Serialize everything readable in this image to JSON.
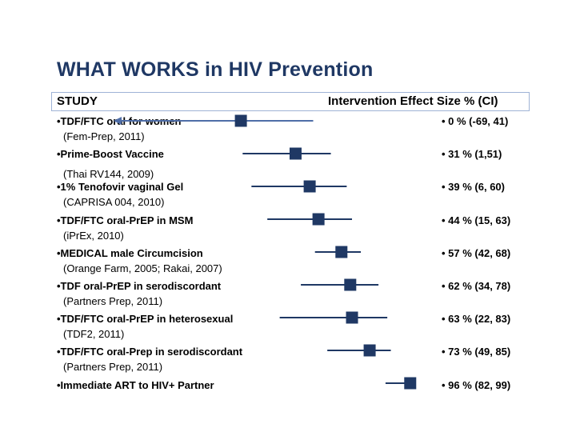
{
  "slide": {
    "title": "WHAT WORKS in HIV Prevention"
  },
  "header": {
    "study_label": "STUDY",
    "effect_label": "Intervention Effect Size % (CI)"
  },
  "chart_data": {
    "type": "forest",
    "title": "WHAT WORKS in HIV Prevention",
    "xlabel": "Intervention Effect Size % (CI)",
    "ylabel": "STUDY",
    "rows": [
      {
        "bullet": "•TDF/FTC oral for women",
        "reference": "(Fem-Prep, 2011)",
        "effect_label": "•    0 % (-69, 41)",
        "estimate": 0,
        "ci_low": -69,
        "ci_high": 41,
        "low_arrow": true
      },
      {
        "bullet": "•Prime-Boost Vaccine",
        "reference": "(Thai RV144, 2009)",
        "effect_label": "• 31 % (1,51)",
        "estimate": 31,
        "ci_low": 1,
        "ci_high": 51
      },
      {
        "bullet": "•1% Tenofovir vaginal Gel",
        "reference": "(CAPRISA 004, 2010)",
        "effect_label": "• 39 % (6, 60)",
        "estimate": 39,
        "ci_low": 6,
        "ci_high": 60
      },
      {
        "bullet": "•TDF/FTC oral-PrEP in MSM",
        "reference": "(iPrEx, 2010)",
        "effect_label": "• 44 % (15, 63)",
        "estimate": 44,
        "ci_low": 15,
        "ci_high": 63
      },
      {
        "bullet": "•MEDICAL male Circumcision",
        "reference": "(Orange Farm, 2005; Rakai, 2007)",
        "effect_label": "• 57 % (42, 68)",
        "estimate": 57,
        "ci_low": 42,
        "ci_high": 68
      },
      {
        "bullet": "•TDF oral-PrEP in serodiscordant",
        "reference": "(Partners Prep, 2011)",
        "effect_label": "• 62 % (34, 78)",
        "estimate": 62,
        "ci_low": 34,
        "ci_high": 78
      },
      {
        "bullet": "•TDF/FTC oral-PrEP in heterosexual",
        "reference": "(TDF2, 2011)",
        "effect_label": "• 63 % (22, 83)",
        "estimate": 63,
        "ci_low": 22,
        "ci_high": 83
      },
      {
        "bullet": "•TDF/FTC oral-Prep in serodiscordant",
        "reference": "(Partners Prep, 2011)",
        "effect_label": "• 73 % (49, 85)",
        "estimate": 73,
        "ci_low": 49,
        "ci_high": 85
      },
      {
        "bullet": "•Immediate ART to HIV+ Partner",
        "reference": "",
        "effect_label": "• 96 % (82, 99)",
        "estimate": 96,
        "ci_low": 82,
        "ci_high": 99
      }
    ],
    "xlim": [
      -69,
      100
    ],
    "grid": false,
    "legend": "none",
    "colors": {
      "marker": "#1f3864",
      "ci_line_first": "#4f6ea8",
      "ci_line": "#1f3864",
      "header_border": "#9fb3d6",
      "title": "#1f3864"
    }
  }
}
